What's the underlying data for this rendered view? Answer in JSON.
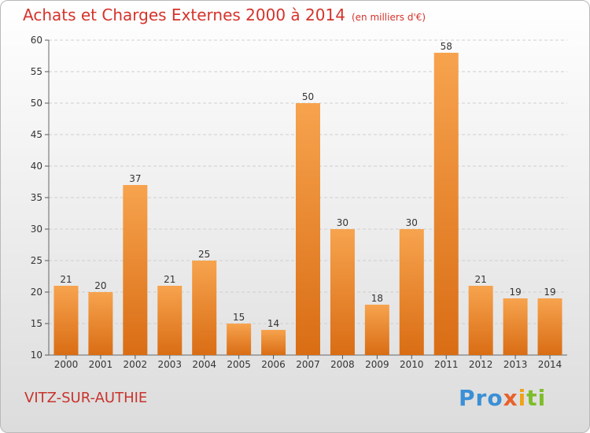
{
  "title": "Achats et Charges Externes 2000 à 2014",
  "unit": "(en milliers d'€)",
  "commune": "VITZ-SUR-AUTHIE",
  "logo": {
    "p1": "Pro",
    "p2": "x",
    "p3": "i",
    "p4": "ti"
  },
  "colors": {
    "bar_top": "#f7a34e",
    "bar_bottom": "#d96d14",
    "title": "#d5332b",
    "grid": "#cfcfcf"
  },
  "chart_data": {
    "type": "bar",
    "categories": [
      "2000",
      "2001",
      "2002",
      "2003",
      "2004",
      "2005",
      "2006",
      "2007",
      "2008",
      "2009",
      "2010",
      "2011",
      "2012",
      "2013",
      "2014"
    ],
    "values": [
      21,
      20,
      37,
      21,
      25,
      15,
      14,
      50,
      30,
      18,
      30,
      58,
      21,
      19,
      19
    ],
    "ylim": [
      10,
      60
    ],
    "yticks": [
      10,
      15,
      20,
      25,
      30,
      35,
      40,
      45,
      50,
      55,
      60
    ],
    "grid": true,
    "data_labels": true
  }
}
